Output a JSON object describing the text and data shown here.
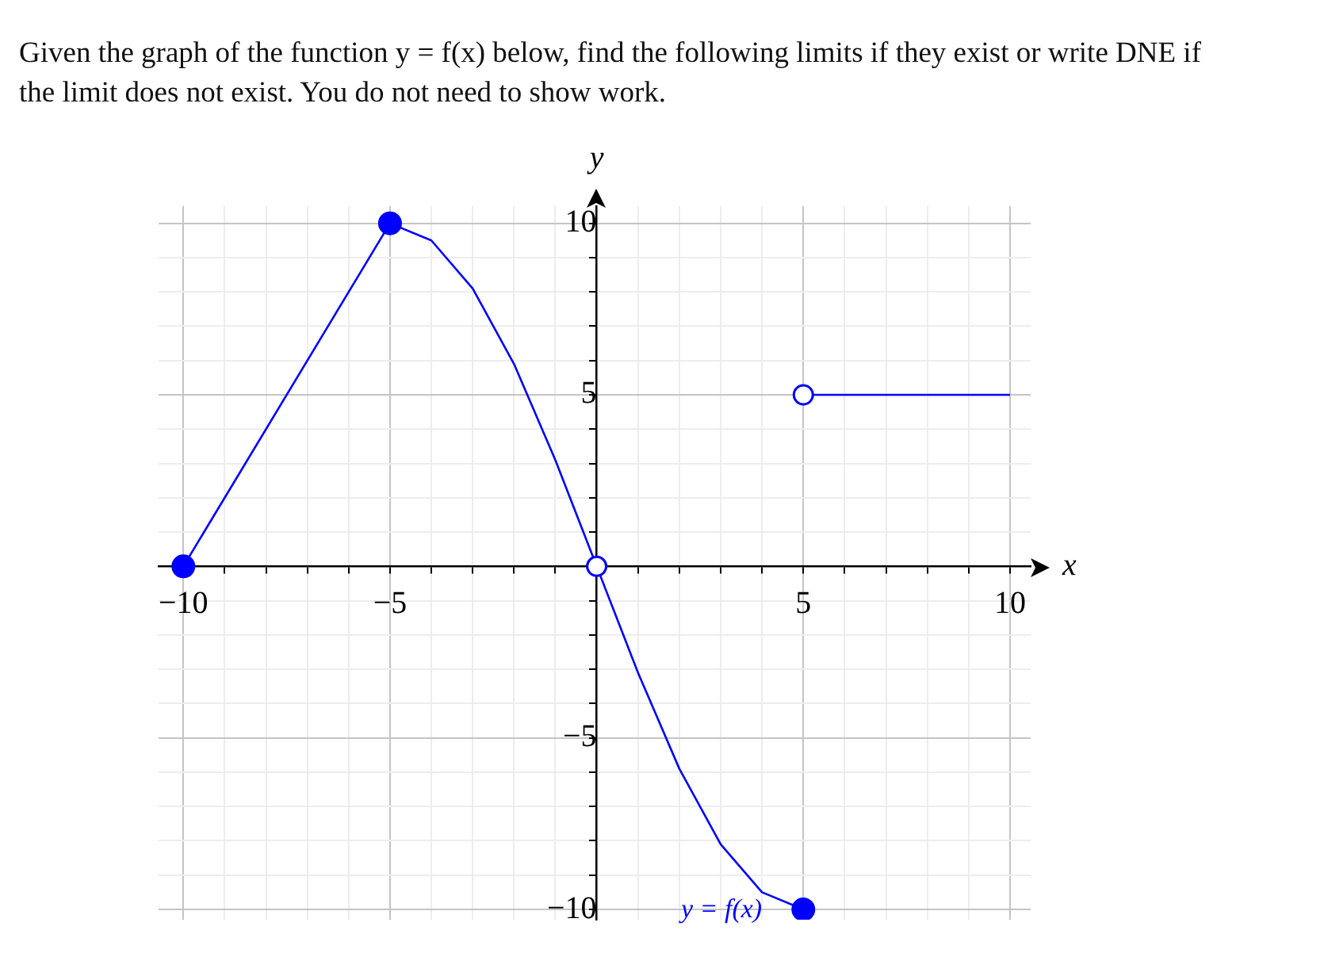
{
  "chart_data": {
    "type": "line",
    "title": "Given the graph of the function y = f(x) below, find the following limits if they exist or write DNE if the limit does not exist. You do not need to show work.",
    "xlabel": "x",
    "ylabel": "y",
    "series": [
      {
        "type": "line",
        "color": "#0000ff",
        "x": [
          -10,
          -5,
          -4,
          -3,
          -2,
          -1,
          0,
          1,
          2,
          3,
          4,
          5
        ],
        "values": [
          0,
          10,
          9.5,
          8.1,
          5.9,
          3.1,
          0,
          -3.1,
          -5.9,
          -8.1,
          -9.5,
          -10
        ],
        "marker": "none"
      },
      {
        "type": "line",
        "color": "#0000ff",
        "x": [
          5,
          10
        ],
        "values": [
          5,
          5
        ],
        "marker": "none"
      },
      {
        "type": "scatter",
        "color": "#0000ff",
        "x": [
          -10,
          -5,
          5
        ],
        "values": [
          0,
          10,
          -10
        ],
        "marker": "circle"
      },
      {
        "type": "scatter",
        "color": "#0000ff",
        "x": [
          0,
          5
        ],
        "values": [
          0,
          5
        ],
        "marker": "circle_open"
      }
    ],
    "annotations": [
      "y = f(x)"
    ],
    "xlim": [
      -10.6,
      10.5
    ],
    "ylim": [
      -10.3,
      10.5
    ],
    "xticks": [
      {
        "value": -10,
        "label": "−10"
      },
      {
        "value": -9,
        "label": null
      },
      {
        "value": -8,
        "label": null
      },
      {
        "value": -7,
        "label": null
      },
      {
        "value": -6,
        "label": null
      },
      {
        "value": -5,
        "label": "−5"
      },
      {
        "value": -4,
        "label": null
      },
      {
        "value": -3,
        "label": null
      },
      {
        "value": -2,
        "label": null
      },
      {
        "value": -1,
        "label": null
      },
      {
        "value": 0,
        "label": null
      },
      {
        "value": 1,
        "label": null
      },
      {
        "value": 2,
        "label": null
      },
      {
        "value": 3,
        "label": null
      },
      {
        "value": 4,
        "label": null
      },
      5,
      {
        "value": 6,
        "label": null
      },
      {
        "value": 7,
        "label": null
      },
      {
        "value": 8,
        "label": null
      },
      {
        "value": 9,
        "label": null
      },
      10
    ],
    "yticks": [
      {
        "value": -10,
        "label": "−10"
      },
      {
        "value": -9,
        "label": null
      },
      {
        "value": -8,
        "label": null
      },
      {
        "value": -7,
        "label": null
      },
      {
        "value": -6,
        "label": null
      },
      {
        "value": -5,
        "label": "−5"
      },
      {
        "value": -4,
        "label": null
      },
      {
        "value": -3,
        "label": null
      },
      {
        "value": -2,
        "label": null
      },
      {
        "value": -1,
        "label": null
      },
      {
        "value": 0,
        "label": null
      },
      {
        "value": 1,
        "label": null
      },
      {
        "value": 2,
        "label": null
      },
      {
        "value": 3,
        "label": null
      },
      {
        "value": 4,
        "label": null
      },
      5,
      {
        "value": 6,
        "label": null
      },
      {
        "value": 7,
        "label": null
      },
      {
        "value": 8,
        "label": null
      },
      {
        "value": 9,
        "label": null
      },
      10
    ],
    "grid": true,
    "legend": false
  }
}
